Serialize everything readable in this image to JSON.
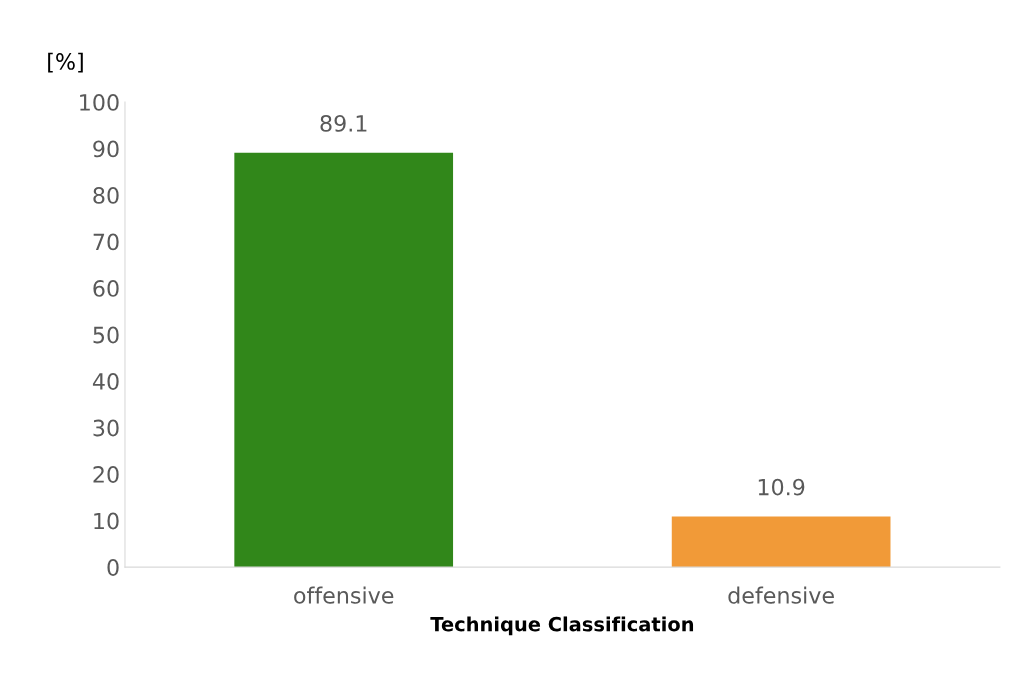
{
  "chart_data": {
    "type": "bar",
    "ylabel": "[%]",
    "xlabel": "Technique Classification",
    "categories": [
      "offensive",
      "defensive"
    ],
    "values": [
      89.1,
      10.9
    ],
    "colors": [
      "#31871a",
      "#f19a38"
    ],
    "ylim": [
      0,
      100
    ],
    "yticks": [
      0,
      10,
      20,
      30,
      40,
      50,
      60,
      70,
      80,
      90,
      100
    ],
    "data_labels": true,
    "grid": false
  }
}
